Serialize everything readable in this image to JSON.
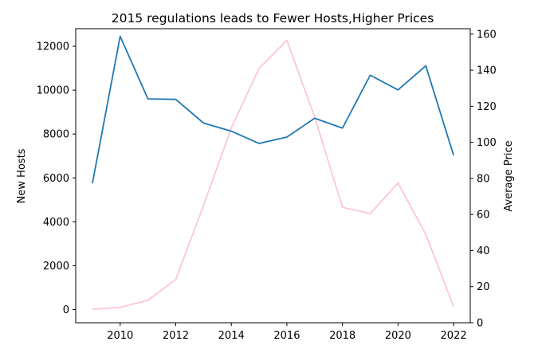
{
  "chart_data": {
    "type": "line",
    "title": "2015 regulations leads to Fewer Hosts,Higher Prices",
    "xlabel": "",
    "x": [
      2009,
      2010,
      2011,
      2012,
      2013,
      2014,
      2015,
      2016,
      2017,
      2018,
      2019,
      2020,
      2021,
      2022
    ],
    "xlim": [
      2008.4,
      2022.6
    ],
    "xticks": [
      2010,
      2012,
      2014,
      2016,
      2018,
      2020,
      2022
    ],
    "grid": false,
    "legend": "none",
    "left_axis": {
      "label": "New Hosts",
      "ylim": [
        -600,
        12800
      ],
      "ticks": [
        0,
        2000,
        4000,
        6000,
        8000,
        10000,
        12000
      ],
      "series": {
        "color": "#1f77b4",
        "values": [
          5750,
          12450,
          9600,
          9580,
          8500,
          8130,
          7570,
          7860,
          8720,
          8270,
          10680,
          10010,
          11110,
          7030
        ]
      }
    },
    "right_axis": {
      "label": "Average Price",
      "ylim": [
        0,
        163
      ],
      "ticks": [
        0,
        20,
        40,
        60,
        80,
        100,
        120,
        140,
        160
      ],
      "series": {
        "color": "#ffc0cb",
        "values": [
          7.5,
          8.5,
          12.5,
          24,
          65,
          108,
          141,
          156.5,
          114,
          64,
          60.5,
          77.5,
          49,
          9
        ]
      }
    }
  }
}
